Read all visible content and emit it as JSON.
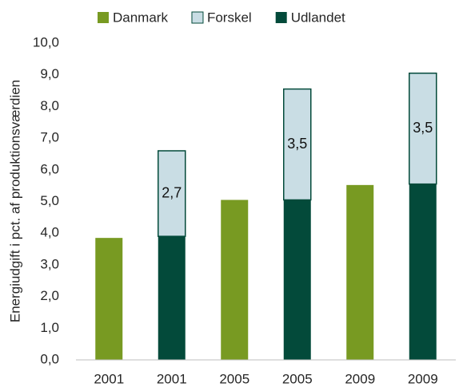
{
  "chart_data": {
    "type": "stacked_bar",
    "y_label": "Energiudgift i pct. af produktionsværdien",
    "categories": [
      "2001",
      "2001",
      "2005",
      "2005",
      "2009",
      "2009"
    ],
    "series": [
      {
        "name": "Danmark",
        "color": "#789a22",
        "values": [
          3.85,
          null,
          5.05,
          null,
          5.52,
          null
        ]
      },
      {
        "name": "Forskel",
        "color": "#c9dde4",
        "values": [
          null,
          2.7,
          null,
          3.5,
          null,
          3.5
        ],
        "value_labels": [
          null,
          "2,7",
          null,
          "3,5",
          null,
          "3,5"
        ]
      },
      {
        "name": "Udlandet",
        "color": "#034a3a",
        "values": [
          null,
          3.9,
          null,
          5.05,
          null,
          5.55
        ]
      }
    ],
    "ylim": [
      0,
      10
    ],
    "yticks": [
      {
        "value": 0,
        "label": "0,0"
      },
      {
        "value": 1,
        "label": "1,0"
      },
      {
        "value": 2,
        "label": "2,0"
      },
      {
        "value": 3,
        "label": "3,0"
      },
      {
        "value": 4,
        "label": "4,0"
      },
      {
        "value": 5,
        "label": "5,0"
      },
      {
        "value": 6,
        "label": "6,0"
      },
      {
        "value": 7,
        "label": "7,0"
      },
      {
        "value": 8,
        "label": "8,0"
      },
      {
        "value": 9,
        "label": "9,0"
      },
      {
        "value": 10,
        "label": "10,0"
      }
    ],
    "legend": "top",
    "grid": false
  }
}
